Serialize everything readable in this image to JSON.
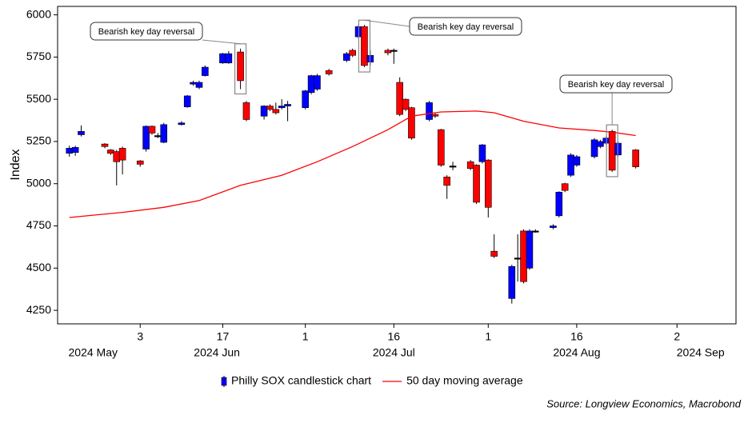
{
  "chart_data": {
    "type": "candlestick",
    "ylabel": "Index",
    "ylim": [
      4170,
      6050
    ],
    "yticks": [
      4250,
      4500,
      4750,
      5000,
      5250,
      5500,
      5750,
      6000
    ],
    "xlim": [
      "2024-05-20",
      "2024-09-12"
    ],
    "xticks": [
      {
        "value": "2024-06-03",
        "label": "3"
      },
      {
        "value": "2024-06-17",
        "label": "17"
      },
      {
        "value": "2024-07-01",
        "label": "1"
      },
      {
        "value": "2024-07-16",
        "label": "16"
      },
      {
        "value": "2024-08-01",
        "label": "1"
      },
      {
        "value": "2024-08-16",
        "label": "16"
      },
      {
        "value": "2024-09-02",
        "label": "2"
      }
    ],
    "month_labels": [
      {
        "value": "2024-05-26",
        "label": "2024 May"
      },
      {
        "value": "2024-06-16",
        "label": "2024 Jun"
      },
      {
        "value": "2024-07-16",
        "label": "2024 Jul"
      },
      {
        "value": "2024-08-16",
        "label": "2024 Aug"
      },
      {
        "value": "2024-09-06",
        "label": "2024 Sep"
      }
    ],
    "series": [
      {
        "name": "Philly SOX candlestick chart",
        "type": "candlestick",
        "up_color": "#0000ff",
        "down_color": "#ff0000",
        "doji_color": "#000000",
        "x": [
          "2024-05-22",
          "2024-05-23",
          "2024-05-24",
          "2024-05-28",
          "2024-05-29",
          "2024-05-30",
          "2024-05-31",
          "2024-06-03",
          "2024-06-04",
          "2024-06-05",
          "2024-06-06",
          "2024-06-07",
          "2024-06-10",
          "2024-06-11",
          "2024-06-12",
          "2024-06-13",
          "2024-06-14",
          "2024-06-17",
          "2024-06-18",
          "2024-06-20",
          "2024-06-21",
          "2024-06-24",
          "2024-06-25",
          "2024-06-26",
          "2024-06-27",
          "2024-06-28",
          "2024-07-01",
          "2024-07-02",
          "2024-07-03",
          "2024-07-05",
          "2024-07-08",
          "2024-07-09",
          "2024-07-10",
          "2024-07-11",
          "2024-07-12",
          "2024-07-15",
          "2024-07-16",
          "2024-07-17",
          "2024-07-18",
          "2024-07-19",
          "2024-07-22",
          "2024-07-23",
          "2024-07-24",
          "2024-07-25",
          "2024-07-26",
          "2024-07-29",
          "2024-07-30",
          "2024-07-31",
          "2024-08-01",
          "2024-08-02",
          "2024-08-05",
          "2024-08-06",
          "2024-08-07",
          "2024-08-08",
          "2024-08-09",
          "2024-08-12",
          "2024-08-13",
          "2024-08-14",
          "2024-08-15",
          "2024-08-16",
          "2024-08-19",
          "2024-08-20",
          "2024-08-21",
          "2024-08-22",
          "2024-08-23",
          "2024-08-26"
        ],
        "open": [
          5180,
          5185,
          5290,
          5235,
          5200,
          5190,
          5210,
          5135,
          5205,
          5340,
          5285,
          5245,
          5350,
          5455,
          5590,
          5570,
          5640,
          5715,
          5715,
          5780,
          5480,
          5400,
          5460,
          5440,
          5450,
          5460,
          5450,
          5540,
          5560,
          5670,
          5730,
          5790,
          5870,
          5930,
          5720,
          5790,
          5790,
          5600,
          5500,
          5450,
          5380,
          5410,
          5320,
          5040,
          5105,
          5130,
          5110,
          5130,
          5140,
          4600,
          4320,
          4560,
          4720,
          4500,
          4720,
          4740,
          4810,
          5000,
          5050,
          5110,
          5160,
          5220,
          5240,
          5310,
          5170,
          5200
        ],
        "high": [
          5225,
          5225,
          5345,
          5240,
          5205,
          5200,
          5220,
          5140,
          5345,
          5345,
          5300,
          5360,
          5370,
          5525,
          5610,
          5610,
          5700,
          5775,
          5785,
          5800,
          5490,
          5465,
          5470,
          5480,
          5500,
          5490,
          5555,
          5645,
          5650,
          5680,
          5780,
          5800,
          5940,
          5940,
          5790,
          5800,
          5800,
          5630,
          5505,
          5455,
          5490,
          5420,
          5325,
          5050,
          5130,
          5140,
          5115,
          5235,
          5145,
          4700,
          4520,
          4700,
          4730,
          4730,
          4730,
          4760,
          4955,
          5005,
          5180,
          5170,
          5270,
          5260,
          5280,
          5320,
          5250,
          5205
        ],
        "low": [
          5160,
          5165,
          5280,
          5210,
          5170,
          4990,
          5055,
          5100,
          5190,
          5290,
          5270,
          5240,
          5345,
          5450,
          5580,
          5560,
          5635,
          5710,
          5710,
          5560,
          5370,
          5380,
          5430,
          5410,
          5440,
          5370,
          5440,
          5530,
          5550,
          5640,
          5720,
          5750,
          5860,
          5690,
          5700,
          5760,
          5710,
          5400,
          5430,
          5260,
          5370,
          5390,
          5100,
          4910,
          5080,
          5080,
          4880,
          5120,
          4800,
          4560,
          4290,
          4420,
          4410,
          4490,
          4710,
          4730,
          4800,
          4950,
          5040,
          5100,
          5150,
          5210,
          5230,
          5070,
          5160,
          5090
        ],
        "close": [
          5210,
          5215,
          5310,
          5220,
          5180,
          5130,
          5140,
          5115,
          5340,
          5300,
          5285,
          5350,
          5360,
          5520,
          5600,
          5600,
          5690,
          5770,
          5770,
          5610,
          5380,
          5460,
          5440,
          5420,
          5460,
          5470,
          5550,
          5640,
          5640,
          5650,
          5770,
          5760,
          5930,
          5700,
          5760,
          5775,
          5790,
          5410,
          5440,
          5270,
          5480,
          5400,
          5110,
          4990,
          5105,
          5090,
          4890,
          5230,
          4860,
          4570,
          4510,
          4560,
          4420,
          4720,
          4720,
          4750,
          4950,
          4960,
          5170,
          5160,
          5260,
          5250,
          5270,
          5080,
          5240,
          5100
        ]
      },
      {
        "name": "50 day moving average",
        "type": "line",
        "color": "#ff0000",
        "x": [
          "2024-05-22",
          "2024-05-31",
          "2024-06-07",
          "2024-06-13",
          "2024-06-20",
          "2024-06-27",
          "2024-07-03",
          "2024-07-09",
          "2024-07-15",
          "2024-07-19",
          "2024-07-24",
          "2024-07-30",
          "2024-08-02",
          "2024-08-07",
          "2024-08-13",
          "2024-08-19",
          "2024-08-22",
          "2024-08-26"
        ],
        "values": [
          4800,
          4830,
          4860,
          4900,
          4990,
          5050,
          5130,
          5220,
          5320,
          5400,
          5425,
          5430,
          5420,
          5370,
          5330,
          5315,
          5305,
          5285
        ]
      }
    ],
    "annotations": [
      {
        "text": "Bearish key day reversal",
        "x": "2024-06-20"
      },
      {
        "text": "Bearish key day reversal",
        "x": "2024-07-11"
      },
      {
        "text": "Bearish key day reversal",
        "x": "2024-08-22"
      }
    ],
    "source": "Source: Longview Economics, Macrobond"
  }
}
